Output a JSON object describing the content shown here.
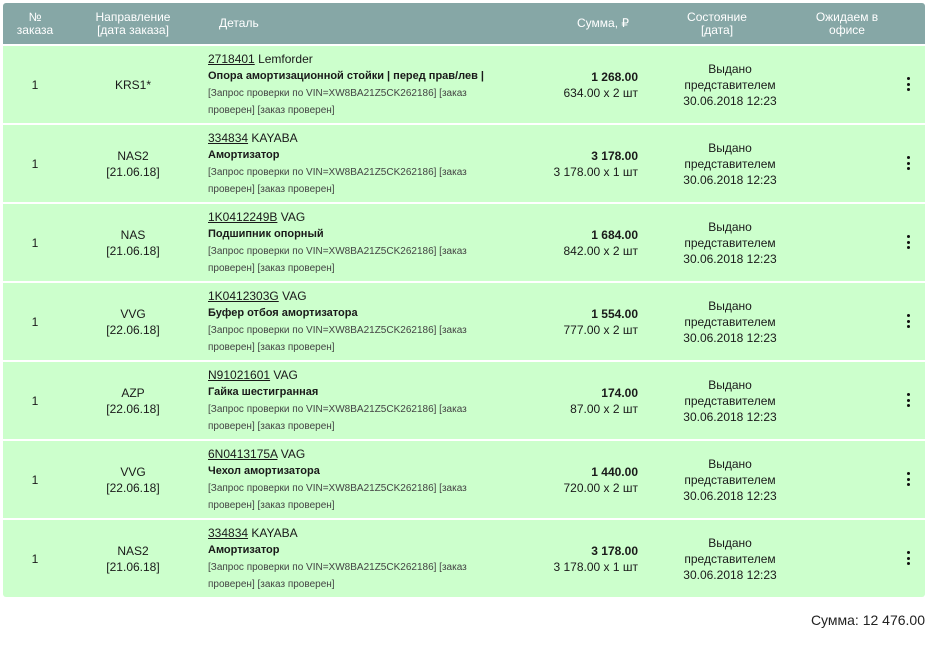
{
  "header": {
    "num": "№\nзаказа",
    "num_l1": "№",
    "num_l2": "заказа",
    "dir_l1": "Направление",
    "dir_l2": "[дата заказа]",
    "detail": "Деталь",
    "sum": "Сумма, ₽",
    "state_l1": "Состояние",
    "state_l2": "[дата]",
    "wait_l1": "Ожидаем в",
    "wait_l2": "офисе"
  },
  "rows": [
    {
      "num": "1",
      "dir": "KRS1*",
      "date": "",
      "code": "2718401",
      "brand": "Lemforder",
      "name": "Опора амортизационной стойки | перед прав/лев |",
      "note_l1": "[Запрос проверки по VIN=XW8BA21Z5CK262186] [заказ",
      "note_l2": "проверен] [заказ проверен]",
      "total": "1 268.00",
      "qty": "634.00 х 2 шт",
      "state_l1": "Выдано",
      "state_l2": "представителем",
      "state_l3": "30.06.2018 12:23"
    },
    {
      "num": "1",
      "dir": "NAS2",
      "date": "[21.06.18]",
      "code": "334834",
      "brand": "KAYABA",
      "name": "Амортизатор",
      "note_l1": "[Запрос проверки по VIN=XW8BA21Z5CK262186] [заказ",
      "note_l2": "проверен] [заказ проверен]",
      "total": "3 178.00",
      "qty": "3 178.00 х 1 шт",
      "state_l1": "Выдано",
      "state_l2": "представителем",
      "state_l3": "30.06.2018 12:23"
    },
    {
      "num": "1",
      "dir": "NAS",
      "date": "[21.06.18]",
      "code": "1K0412249B",
      "brand": "VAG",
      "name": "Подшипник опорный",
      "note_l1": "[Запрос проверки по VIN=XW8BA21Z5CK262186] [заказ",
      "note_l2": "проверен] [заказ проверен]",
      "total": "1 684.00",
      "qty": "842.00 х 2 шт",
      "state_l1": "Выдано",
      "state_l2": "представителем",
      "state_l3": "30.06.2018 12:23"
    },
    {
      "num": "1",
      "dir": "VVG",
      "date": "[22.06.18]",
      "code": "1K0412303G",
      "brand": "VAG",
      "name": "Буфер отбоя амортизатора",
      "note_l1": "[Запрос проверки по VIN=XW8BA21Z5CK262186] [заказ",
      "note_l2": "проверен] [заказ проверен]",
      "total": "1 554.00",
      "qty": "777.00 х 2 шт",
      "state_l1": "Выдано",
      "state_l2": "представителем",
      "state_l3": "30.06.2018 12:23"
    },
    {
      "num": "1",
      "dir": "AZP",
      "date": "[22.06.18]",
      "code": "N91021601",
      "brand": "VAG",
      "name": "Гайка шестигранная",
      "note_l1": "[Запрос проверки по VIN=XW8BA21Z5CK262186] [заказ",
      "note_l2": "проверен] [заказ проверен]",
      "total": "174.00",
      "qty": "87.00 х 2 шт",
      "state_l1": "Выдано",
      "state_l2": "представителем",
      "state_l3": "30.06.2018 12:23"
    },
    {
      "num": "1",
      "dir": "VVG",
      "date": "[22.06.18]",
      "code": "6N0413175A",
      "brand": "VAG",
      "name": "Чехол амортизатора",
      "note_l1": "[Запрос проверки по VIN=XW8BA21Z5CK262186] [заказ",
      "note_l2": "проверен] [заказ проверен]",
      "total": "1 440.00",
      "qty": "720.00 х 2 шт",
      "state_l1": "Выдано",
      "state_l2": "представителем",
      "state_l3": "30.06.2018 12:23"
    },
    {
      "num": "1",
      "dir": "NAS2",
      "date": "[21.06.18]",
      "code": "334834",
      "brand": "KAYABA",
      "name": "Амортизатор",
      "note_l1": "[Запрос проверки по VIN=XW8BA21Z5CK262186] [заказ",
      "note_l2": "проверен] [заказ проверен]",
      "total": "3 178.00",
      "qty": "3 178.00 х 1 шт",
      "state_l1": "Выдано",
      "state_l2": "представителем",
      "state_l3": "30.06.2018 12:23"
    }
  ],
  "footer": {
    "total": "Сумма: 12 476.00"
  },
  "colors": {
    "header_bg": "#86a7a6",
    "row_bg": "#ccffcc"
  },
  "icons": {
    "row_menu": "kebab-menu-icon"
  }
}
